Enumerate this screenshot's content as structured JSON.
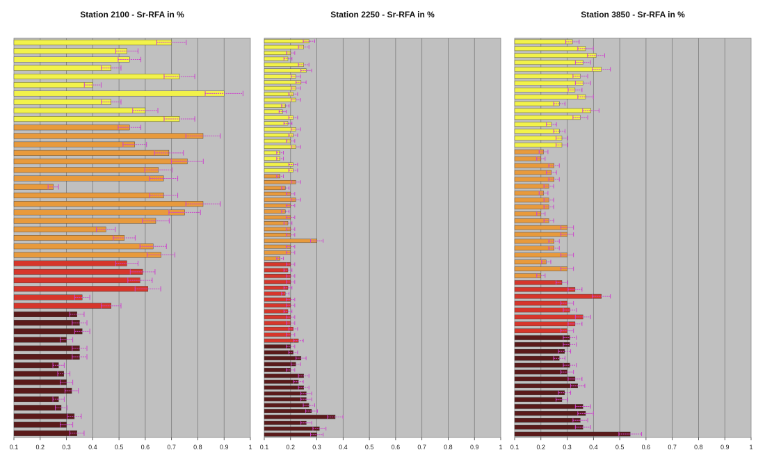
{
  "chart_data": [
    {
      "type": "bar",
      "orientation": "horizontal",
      "title": "Station 2100 - Sr-RFA in %",
      "xlim": [
        0.1,
        1
      ],
      "xticks": [
        "0.1",
        "0.2",
        "0.3",
        "0.4",
        "0.5",
        "0.6",
        "0.7",
        "0.8",
        "0.9",
        "1"
      ],
      "grid": true,
      "error_bars": true,
      "error_fraction": 0.08,
      "colors": [
        "#f2f24a",
        "#e89a3c",
        "#d6362b",
        "#5a1a1a"
      ],
      "values": [
        0.7,
        0.53,
        0.54,
        0.47,
        0.73,
        0.4,
        0.9,
        0.47,
        0.6,
        0.73,
        0.54,
        0.82,
        0.56,
        0.69,
        0.76,
        0.65,
        0.67,
        0.25,
        0.67,
        0.82,
        0.75,
        0.64,
        0.45,
        0.52,
        0.63,
        0.66,
        0.53,
        0.59,
        0.58,
        0.61,
        0.36,
        0.47,
        0.34,
        0.35,
        0.36,
        0.3,
        0.35,
        0.35,
        0.27,
        0.29,
        0.3,
        0.32,
        0.27,
        0.28,
        0.33,
        0.3,
        0.34
      ],
      "color_groups": [
        0,
        0,
        0,
        0,
        0,
        0,
        0,
        0,
        0,
        0,
        1,
        1,
        1,
        1,
        1,
        1,
        1,
        1,
        1,
        1,
        1,
        1,
        1,
        1,
        1,
        1,
        2,
        2,
        2,
        2,
        2,
        2,
        3,
        3,
        3,
        3,
        3,
        3,
        3,
        3,
        3,
        3,
        3,
        3,
        3,
        3,
        3
      ]
    },
    {
      "type": "bar",
      "orientation": "horizontal",
      "title": "Station 2250 - Sr-RFA in %",
      "xlim": [
        0.1,
        1
      ],
      "xticks": [
        "0.1",
        "0.2",
        "0.3",
        "0.4",
        "0.5",
        "0.6",
        "0.7",
        "0.8",
        "0.9",
        "1"
      ],
      "grid": true,
      "error_bars": true,
      "error_fraction": 0.08,
      "colors": [
        "#f2f24a",
        "#e89a3c",
        "#d6362b",
        "#5a1a1a"
      ],
      "values": [
        0.27,
        0.25,
        0.2,
        0.19,
        0.25,
        0.26,
        0.22,
        0.24,
        0.22,
        0.21,
        0.22,
        0.18,
        0.17,
        0.21,
        0.19,
        0.22,
        0.21,
        0.2,
        0.22,
        0.16,
        0.16,
        0.21,
        0.21,
        0.16,
        0.22,
        0.18,
        0.2,
        0.22,
        0.2,
        0.18,
        0.2,
        0.19,
        0.2,
        0.2,
        0.3,
        0.2,
        0.2,
        0.16,
        0.2,
        0.19,
        0.2,
        0.2,
        0.19,
        0.18,
        0.2,
        0.2,
        0.19,
        0.2,
        0.2,
        0.21,
        0.2,
        0.23,
        0.2,
        0.21,
        0.24,
        0.22,
        0.2,
        0.25,
        0.23,
        0.25,
        0.26,
        0.26,
        0.27,
        0.28,
        0.37,
        0.26,
        0.31,
        0.3
      ],
      "color_groups": [
        0,
        0,
        0,
        0,
        0,
        0,
        0,
        0,
        0,
        0,
        0,
        0,
        0,
        0,
        0,
        0,
        0,
        0,
        0,
        0,
        0,
        0,
        0,
        1,
        1,
        1,
        1,
        1,
        1,
        1,
        1,
        1,
        1,
        1,
        1,
        1,
        1,
        1,
        2,
        2,
        2,
        2,
        2,
        2,
        2,
        2,
        2,
        2,
        2,
        2,
        2,
        2,
        3,
        3,
        3,
        3,
        3,
        3,
        3,
        3,
        3,
        3,
        3,
        3,
        3,
        3,
        3,
        3
      ]
    },
    {
      "type": "bar",
      "orientation": "horizontal",
      "title": "Station 3850 - Sr-RFA in %",
      "xlim": [
        0.1,
        1
      ],
      "xticks": [
        "0.1",
        "0.2",
        "0.3",
        "0.4",
        "0.5",
        "0.6",
        "0.7",
        "0.8",
        "0.9",
        "1"
      ],
      "grid": true,
      "error_bars": true,
      "error_fraction": 0.08,
      "colors": [
        "#f2f24a",
        "#e89a3c",
        "#d6362b",
        "#5a1a1a"
      ],
      "values": [
        0.32,
        0.37,
        0.41,
        0.36,
        0.43,
        0.35,
        0.36,
        0.33,
        0.37,
        0.27,
        0.39,
        0.35,
        0.24,
        0.27,
        0.28,
        0.28,
        0.21,
        0.2,
        0.25,
        0.24,
        0.25,
        0.23,
        0.21,
        0.23,
        0.23,
        0.2,
        0.23,
        0.3,
        0.3,
        0.25,
        0.25,
        0.3,
        0.22,
        0.3,
        0.2,
        0.28,
        0.33,
        0.43,
        0.3,
        0.31,
        0.36,
        0.33,
        0.3,
        0.31,
        0.31,
        0.29,
        0.27,
        0.31,
        0.3,
        0.33,
        0.34,
        0.29,
        0.28,
        0.36,
        0.37,
        0.35,
        0.36,
        0.54
      ],
      "color_groups": [
        0,
        0,
        0,
        0,
        0,
        0,
        0,
        0,
        0,
        0,
        0,
        0,
        0,
        0,
        0,
        0,
        1,
        1,
        1,
        1,
        1,
        1,
        1,
        1,
        1,
        1,
        1,
        1,
        1,
        1,
        1,
        1,
        1,
        1,
        1,
        2,
        2,
        2,
        2,
        2,
        2,
        2,
        2,
        3,
        3,
        3,
        3,
        3,
        3,
        3,
        3,
        3,
        3,
        3,
        3,
        3,
        3,
        3
      ]
    }
  ]
}
